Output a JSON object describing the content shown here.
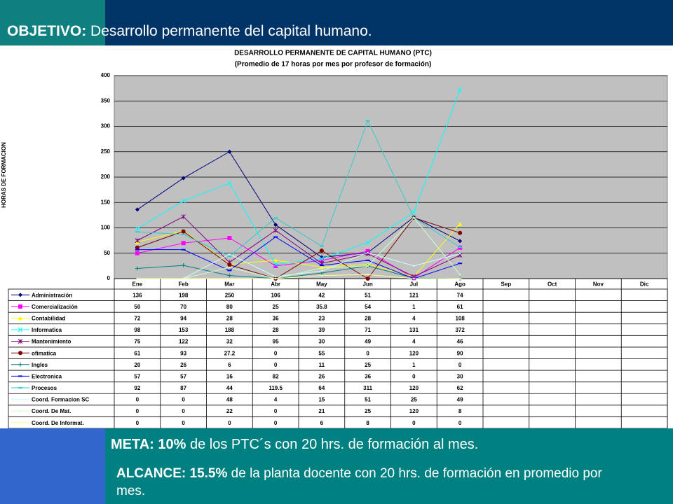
{
  "header": {
    "label": "OBJETIVO:",
    "text": "Desarrollo permanente del capital humano."
  },
  "chart_data": {
    "type": "line",
    "title": "DESARROLLO PERMANENTE DE CAPITAL HUMANO (PTC)",
    "subtitle": "(Promedio de 17 horas por mes por profesor de formación)",
    "y_label": "HORAS DE FORMACION",
    "categories": [
      "Ene",
      "Feb",
      "Mar",
      "Abr",
      "May",
      "Jun",
      "Jul",
      "Ago",
      "Sep",
      "Oct",
      "Nov",
      "Dic"
    ],
    "ylim": [
      0,
      400
    ],
    "yticks": [
      0,
      50,
      100,
      150,
      200,
      250,
      300,
      350,
      400
    ],
    "grid": true,
    "series": [
      {
        "name": "Administración",
        "color": "#000080",
        "marker": "diamond",
        "values": [
          136,
          198,
          250,
          106,
          42,
          51,
          121,
          74,
          null,
          null,
          null,
          null
        ]
      },
      {
        "name": "Comercialización",
        "color": "#ff00ff",
        "marker": "square",
        "values": [
          50,
          70,
          80,
          25,
          35.8,
          54,
          1,
          61,
          null,
          null,
          null,
          null
        ]
      },
      {
        "name": "Contabilidad",
        "color": "#ffff00",
        "marker": "triangle",
        "values": [
          72,
          94,
          28,
          36,
          23,
          28,
          4,
          108,
          null,
          null,
          null,
          null
        ]
      },
      {
        "name": "Informatica",
        "color": "#00ffff",
        "marker": "x",
        "values": [
          98,
          153,
          188,
          28,
          39,
          71,
          131,
          372,
          null,
          null,
          null,
          null
        ]
      },
      {
        "name": "Mantenimiento",
        "color": "#800080",
        "marker": "star",
        "values": [
          75,
          122,
          32,
          95,
          30,
          49,
          4,
          46,
          null,
          null,
          null,
          null
        ]
      },
      {
        "name": "ofimatica",
        "color": "#800000",
        "marker": "circle",
        "values": [
          61,
          93,
          27.2,
          0,
          55,
          0,
          120,
          90,
          null,
          null,
          null,
          null
        ]
      },
      {
        "name": "Ingles",
        "color": "#008080",
        "marker": "plus",
        "values": [
          20,
          26,
          6,
          0,
          11,
          25,
          1,
          0,
          null,
          null,
          null,
          null
        ]
      },
      {
        "name": "Electronica",
        "color": "#0000ff",
        "marker": "dash",
        "values": [
          57,
          57,
          16,
          82,
          26,
          36,
          0,
          30,
          null,
          null,
          null,
          null
        ]
      },
      {
        "name": "Procesos",
        "color": "#33cccc",
        "marker": "dash",
        "values": [
          92,
          87,
          44,
          119.5,
          64,
          311,
          120,
          62,
          null,
          null,
          null,
          null
        ]
      },
      {
        "name": "Coord. Formacion SC",
        "color": "#ccffff",
        "marker": "none",
        "values": [
          0,
          0,
          48,
          4,
          15,
          51,
          25,
          49,
          null,
          null,
          null,
          null
        ]
      },
      {
        "name": "Coord. De Mat.",
        "color": "#ccffcc",
        "marker": "none",
        "values": [
          0,
          0,
          22,
          0,
          21,
          25,
          120,
          8,
          null,
          null,
          null,
          null
        ]
      },
      {
        "name": "Coord. De Informat.",
        "color": "#ffff99",
        "marker": "none",
        "values": [
          0,
          0,
          0,
          0,
          6,
          8,
          0,
          0,
          null,
          null,
          null,
          null
        ]
      }
    ]
  },
  "footer": {
    "meta_label": "META:",
    "meta_value": "10%",
    "meta_text": "de los PTC´s con 20 hrs. de formación al mes.",
    "alcance_label": "ALCANCE:",
    "alcance_value": "15.5%",
    "alcance_text": "de la planta docente con 20 hrs. de formación en promedio por mes."
  }
}
